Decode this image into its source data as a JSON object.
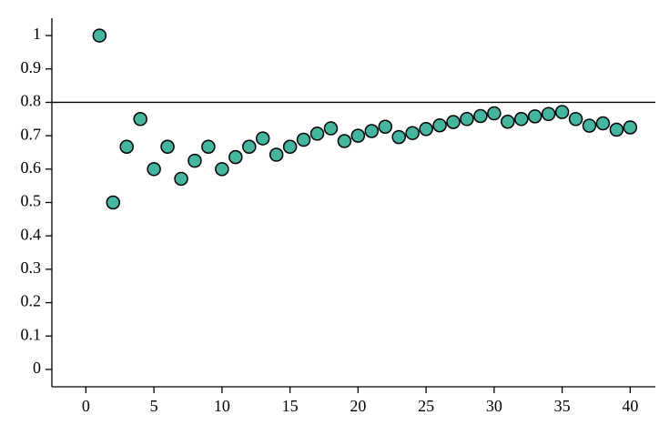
{
  "chart_data": {
    "type": "scatter",
    "x": [
      1,
      2,
      3,
      4,
      5,
      6,
      7,
      8,
      9,
      10,
      11,
      12,
      13,
      14,
      15,
      16,
      17,
      18,
      19,
      20,
      21,
      22,
      23,
      24,
      25,
      26,
      27,
      28,
      29,
      30,
      31,
      32,
      33,
      34,
      35,
      36,
      37,
      38,
      39,
      40
    ],
    "values": [
      1,
      0.5,
      0.667,
      0.75,
      0.6,
      0.667,
      0.571,
      0.625,
      0.667,
      0.6,
      0.636,
      0.667,
      0.692,
      0.643,
      0.667,
      0.688,
      0.706,
      0.722,
      0.684,
      0.7,
      0.714,
      0.727,
      0.696,
      0.708,
      0.72,
      0.731,
      0.741,
      0.75,
      0.759,
      0.767,
      0.742,
      0.75,
      0.758,
      0.765,
      0.771,
      0.75,
      0.73,
      0.737,
      0.718,
      0.725
    ],
    "color": "#45b5a0",
    "hline": 0.8,
    "xlim": [
      -2.5,
      41.85
    ],
    "xticks": [
      0,
      5,
      10,
      15,
      20,
      25,
      30,
      35,
      40
    ],
    "ylim": [
      -0.052,
      1.052
    ],
    "yticks": [
      0,
      0.1,
      0.2,
      0.3,
      0.4,
      0.5,
      0.6,
      0.7,
      0.8,
      0.9,
      1
    ]
  }
}
